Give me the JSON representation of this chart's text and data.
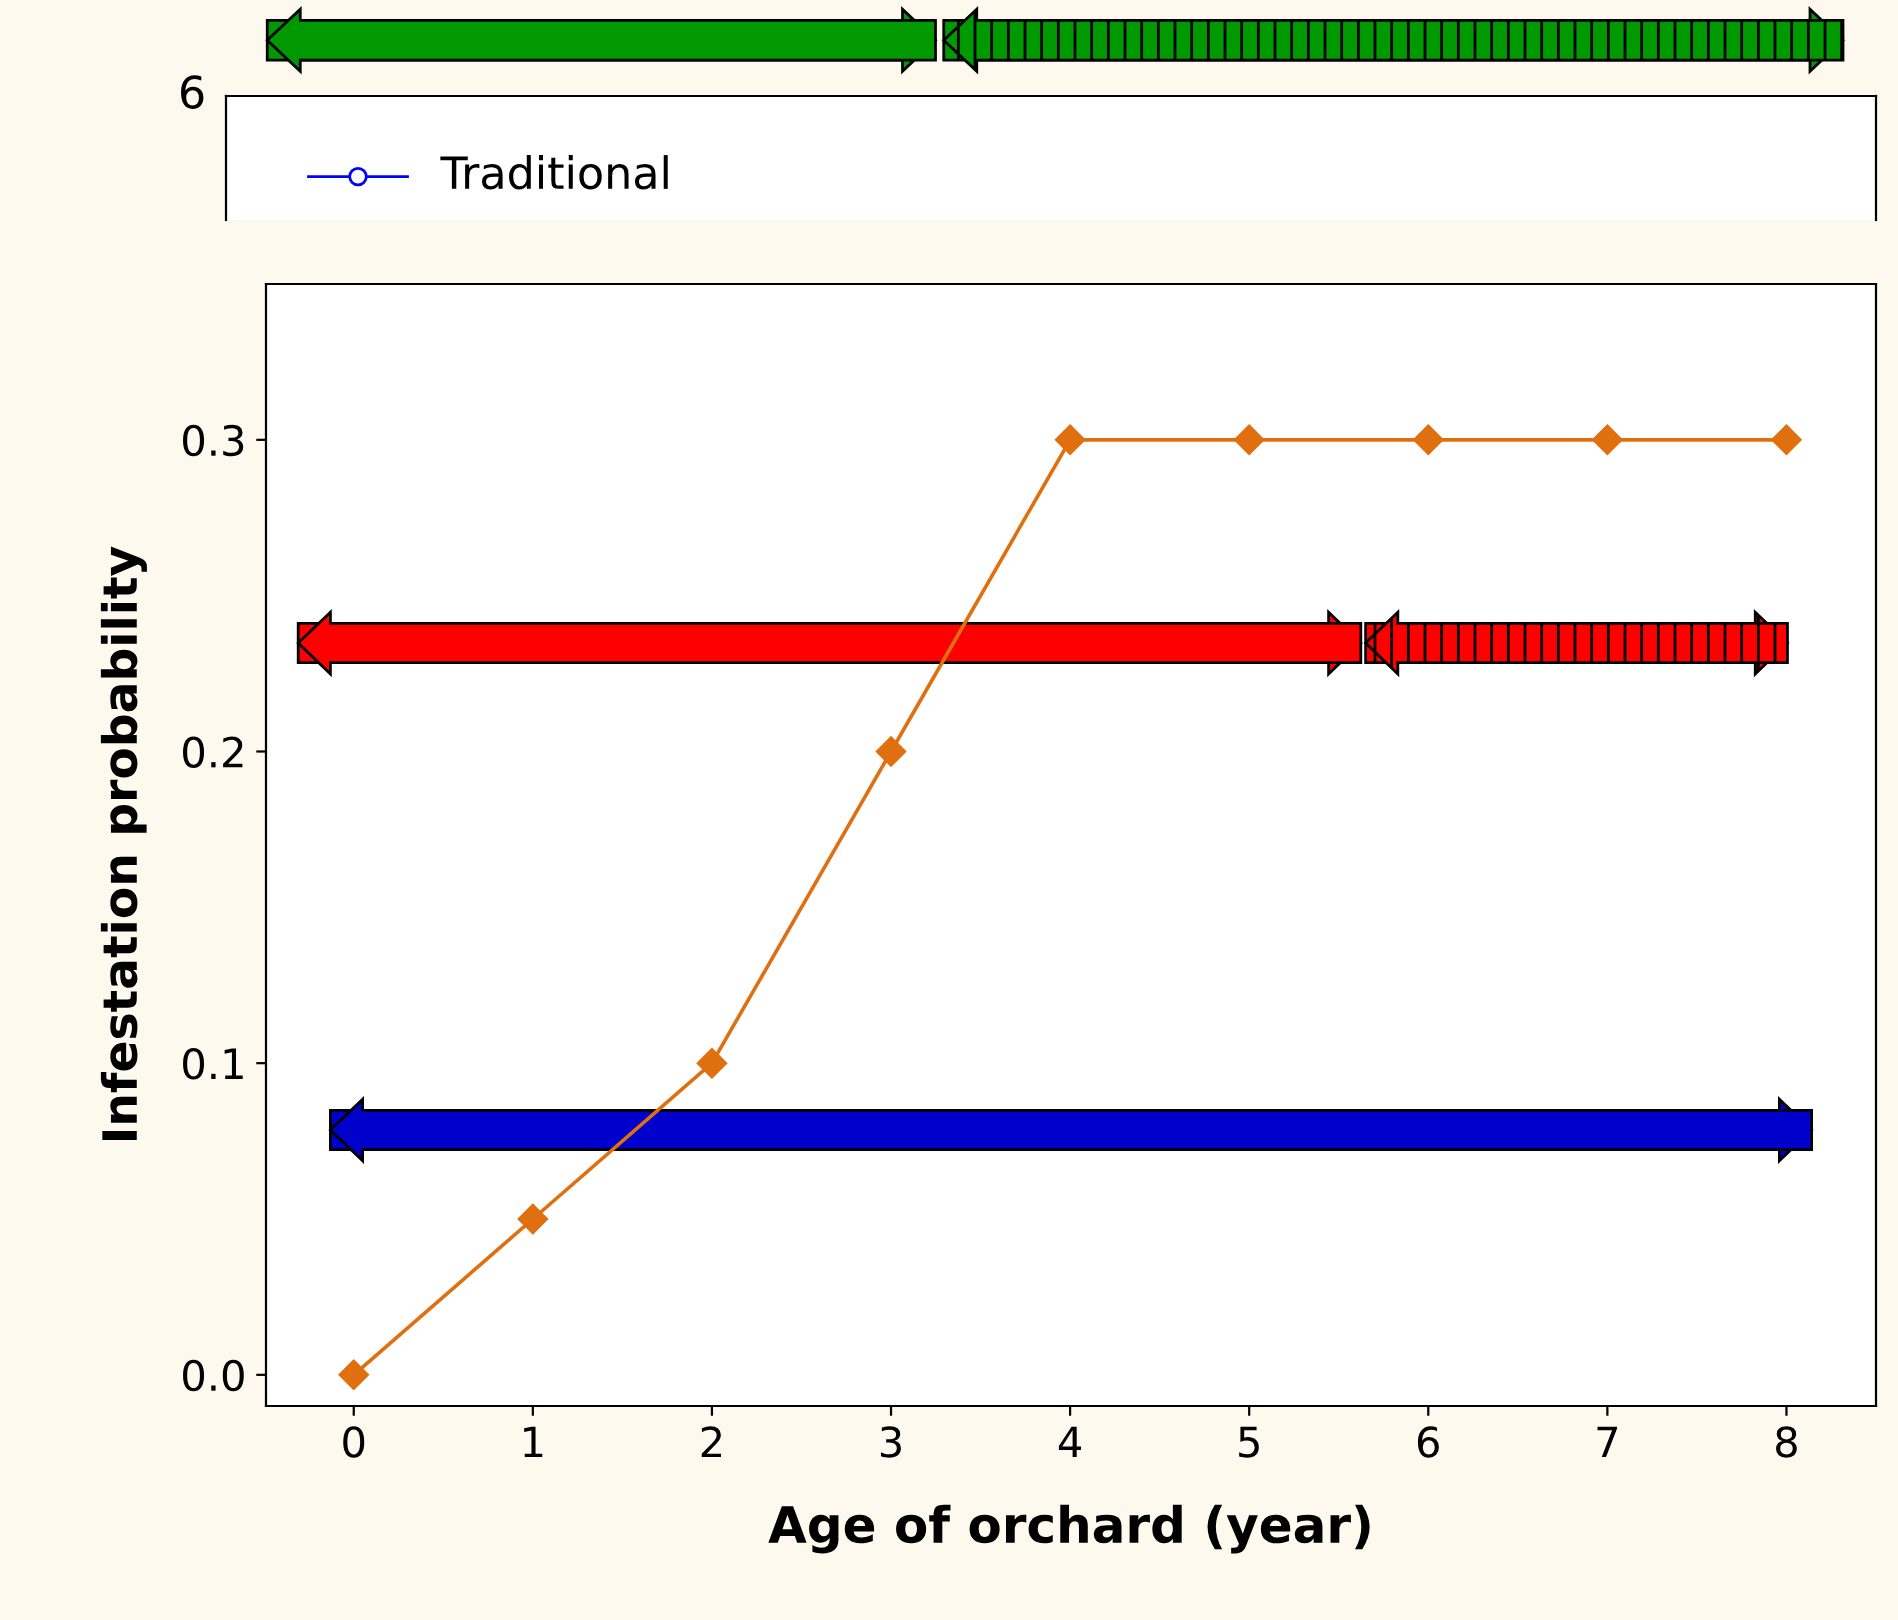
{
  "chart_data": [
    {
      "type": "other",
      "annotations": [
        "6",
        "Traditional"
      ]
    },
    {
      "type": "line",
      "xlabel": "Age of orchard (year)",
      "ylabel": "Infestation probability",
      "x": [
        0,
        1,
        2,
        3,
        4,
        5,
        6,
        7,
        8
      ],
      "series": [
        {
          "color": "#e0700f",
          "values": [
            0,
            0.05,
            0.1,
            0.2,
            0.3,
            0.3,
            0.3,
            0.3,
            0.3
          ]
        }
      ],
      "marker": "diamond",
      "line_style": "solid",
      "grid": false,
      "legend": false,
      "xlim": [
        -0.49,
        8.5
      ],
      "xticks": [
        0,
        1,
        2,
        3,
        4,
        5,
        6,
        7,
        8
      ],
      "ylim": [
        -0.01,
        0.35
      ],
      "yticks": [
        {
          "value": 0,
          "label": "0.0"
        },
        0.1,
        0.2,
        0.3
      ]
    }
  ]
}
